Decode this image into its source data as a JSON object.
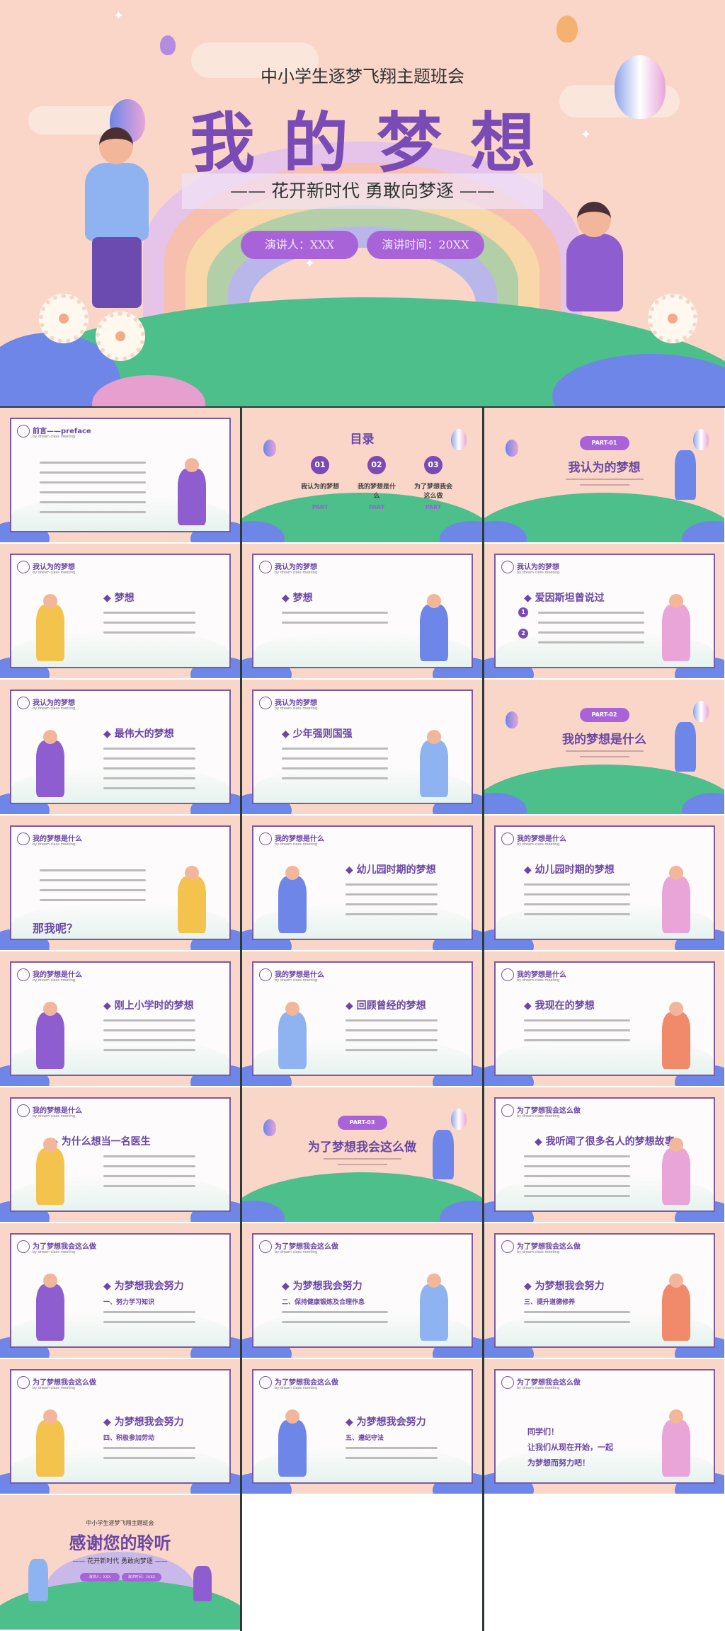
{
  "colors": {
    "accent": "#7a4bb5",
    "pill": "#a963d8",
    "background": "#f9d6c8",
    "green": "#4cbf8a"
  },
  "hero": {
    "subtitle": "中小学生逐梦飞翔主题班会",
    "title": "我的梦想",
    "slogan": "—— 花开新时代  勇敢向梦逐 ——",
    "speaker": "演讲人：XXX",
    "time": "演讲时间：20XX"
  },
  "header_sub": "by dream class meeting",
  "slides": [
    {
      "type": "content",
      "header": "前言——preface",
      "heading": "",
      "lines": 6,
      "figure": "boy-jumping"
    },
    {
      "type": "toc",
      "title": "目录",
      "items": [
        {
          "num": "01",
          "label": "我认为的梦想",
          "part": "PART"
        },
        {
          "num": "02",
          "label": "我的梦想是什么",
          "part": "PART"
        },
        {
          "num": "03",
          "label": "为了梦想我会这么做",
          "part": "PART"
        }
      ]
    },
    {
      "type": "section",
      "pill": "PART-01",
      "title": "我认为的梦想"
    },
    {
      "type": "content",
      "header": "我认为的梦想",
      "heading": "◆ 梦想",
      "lines": 3,
      "figure": "girl-jumping"
    },
    {
      "type": "content",
      "header": "我认为的梦想",
      "heading": "◆ 梦想",
      "lines": 2,
      "figure": "girl-overalls"
    },
    {
      "type": "content",
      "header": "我认为的梦想",
      "heading": "◆ 爱因斯坦曾说过",
      "lines": 4,
      "figure": "ufo",
      "numbered": [
        "1",
        "2"
      ]
    },
    {
      "type": "content",
      "header": "我认为的梦想",
      "heading": "◆ 最伟大的梦想",
      "lines": 5,
      "figure": "astronaut-moon"
    },
    {
      "type": "content",
      "header": "我认为的梦想",
      "heading": "◆ 少年强则国强",
      "lines": 4,
      "figure": "man-reading"
    },
    {
      "type": "section",
      "pill": "PART-02",
      "title": "我的梦想是什么"
    },
    {
      "type": "content",
      "header": "我的梦想是什么",
      "heading": "",
      "sub": "那我呢？",
      "lines": 4,
      "figure": "astronaut-rocket"
    },
    {
      "type": "content",
      "header": "我的梦想是什么",
      "heading": "◆ 幼儿园时期的梦想",
      "lines": 4,
      "figure": "mother-child"
    },
    {
      "type": "content",
      "header": "我的梦想是什么",
      "heading": "◆ 幼儿园时期的梦想",
      "lines": 4,
      "figure": "father-child"
    },
    {
      "type": "content",
      "header": "我的梦想是什么",
      "heading": "◆ 刚上小学时的梦想",
      "lines": 4,
      "figure": "boy-desk"
    },
    {
      "type": "content",
      "header": "我的梦想是什么",
      "heading": "◆ 回顾曾经的梦想",
      "lines": 4,
      "figure": "girl-desk"
    },
    {
      "type": "content",
      "header": "我的梦想是什么",
      "heading": "◆ 我现在的梦想",
      "lines": 3,
      "figure": "doctor"
    },
    {
      "type": "content",
      "header": "我的梦想是什么",
      "heading": "◆ 为什么想当一名医生",
      "lines": 4,
      "figure": "nurse-patient"
    },
    {
      "type": "section",
      "pill": "PART-03",
      "title": "为了梦想我会这么做"
    },
    {
      "type": "content",
      "header": "为了梦想我会这么做",
      "heading": "◆ 我听闻了很多名人的梦想故事",
      "lines": 5,
      "figure": "boy-sitting"
    },
    {
      "type": "content",
      "header": "为了梦想我会这么做",
      "heading": "◆ 为梦想我会努力",
      "sub": "一、努力学习知识",
      "lines": 2,
      "figure": "kids-books"
    },
    {
      "type": "content",
      "header": "为了梦想我会这么做",
      "heading": "◆ 为梦想我会努力",
      "sub": "二、保持健康锻炼及合理作息",
      "lines": 2,
      "figure": "girl-laptop"
    },
    {
      "type": "content",
      "header": "为了梦想我会这么做",
      "heading": "◆ 为梦想我会努力",
      "sub": "三、提升道德修养",
      "lines": 2,
      "figure": "boy-studying"
    },
    {
      "type": "content",
      "header": "为了梦想我会这么做",
      "heading": "◆ 为梦想我会努力",
      "sub": "四、积极参加劳动",
      "lines": 2,
      "figure": "family-cleaning"
    },
    {
      "type": "content",
      "header": "为了梦想我会这么做",
      "heading": "◆ 为梦想我会努力",
      "sub": "五、遵纪守法",
      "lines": 2,
      "figure": "girl-writing"
    },
    {
      "type": "closing",
      "header": "为了梦想我会这么做",
      "lines_text": [
        "同学们！",
        "让我们从现在开始，一起",
        "为梦想而努力吧！"
      ],
      "figure": "boy-cheering"
    },
    {
      "type": "thanks",
      "subtitle": "中小学生逐梦飞翔主题班会",
      "title": "感谢您的聆听",
      "slogan": "—— 花开新时代  勇敢向梦逐 ——",
      "speaker": "演讲人：XXX",
      "time": "演讲时间：20XX"
    }
  ]
}
